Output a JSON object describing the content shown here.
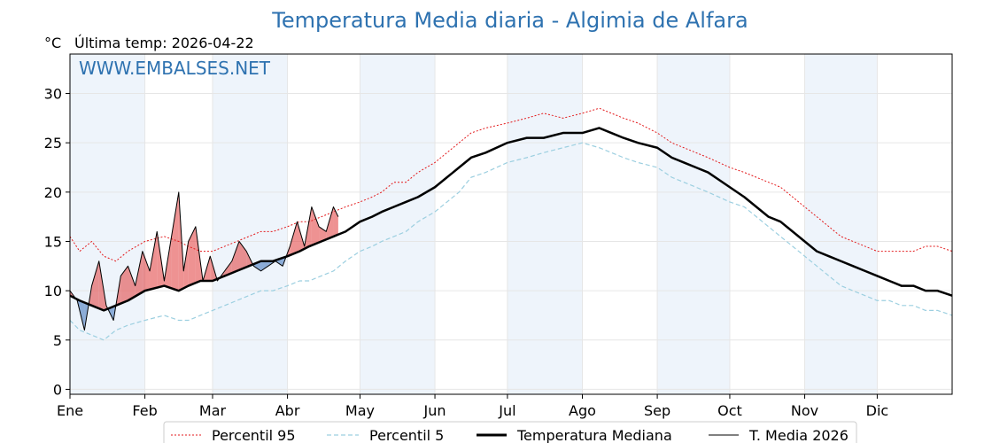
{
  "chart_data": {
    "type": "line",
    "title": "Temperatura Media diaria - Algimia de Alfara",
    "unit_label": "°C",
    "subtitle": "Última temp: 2026-04-22",
    "watermark": "WWW.EMBALSES.NET",
    "ylim": [
      -0.5,
      34
    ],
    "yticks": [
      0,
      5,
      10,
      15,
      20,
      25,
      30
    ],
    "xlim": [
      1,
      366
    ],
    "months": [
      {
        "label": "Ene",
        "day": 1
      },
      {
        "label": "Feb",
        "day": 32
      },
      {
        "label": "Mar",
        "day": 60
      },
      {
        "label": "Abr",
        "day": 91
      },
      {
        "label": "May",
        "day": 121
      },
      {
        "label": "Jun",
        "day": 152
      },
      {
        "label": "Jul",
        "day": 182
      },
      {
        "label": "Ago",
        "day": 213
      },
      {
        "label": "Sep",
        "day": 244
      },
      {
        "label": "Oct",
        "day": 274
      },
      {
        "label": "Nov",
        "day": 305
      },
      {
        "label": "Dic",
        "day": 335
      }
    ],
    "grid": true,
    "legend_position": "bottom",
    "colors": {
      "p95": "#e31a1c",
      "p5": "#9ccfe0",
      "median": "#000000",
      "current": "#000000",
      "above": "#e34a4a",
      "below": "#4a7cc0",
      "band": "#eef4fb"
    },
    "series": [
      {
        "name": "Percentil 95",
        "style": "dotted",
        "x": [
          1,
          5,
          10,
          15,
          20,
          25,
          32,
          40,
          46,
          50,
          55,
          60,
          65,
          70,
          75,
          80,
          85,
          91,
          96,
          100,
          105,
          110,
          115,
          121,
          126,
          130,
          135,
          140,
          145,
          152,
          157,
          162,
          167,
          173,
          182,
          190,
          197,
          205,
          213,
          220,
          225,
          230,
          236,
          244,
          250,
          255,
          260,
          265,
          274,
          280,
          285,
          290,
          295,
          305,
          310,
          315,
          320,
          325,
          330,
          335,
          340,
          345,
          350,
          355,
          360,
          366
        ],
        "y": [
          15.5,
          14,
          15,
          13.5,
          13,
          14,
          15,
          15.5,
          15,
          14.5,
          14,
          14,
          14.5,
          15,
          15.5,
          16,
          16,
          16.5,
          17,
          17,
          17.5,
          18,
          18.5,
          19,
          19.5,
          20,
          21,
          21,
          22,
          23,
          24,
          25,
          26,
          26.5,
          27,
          27.5,
          28,
          27.5,
          28,
          28.5,
          28,
          27.5,
          27,
          26,
          25,
          24.5,
          24,
          23.5,
          22.5,
          22,
          21.5,
          21,
          20.5,
          18.5,
          17.5,
          16.5,
          15.5,
          15,
          14.5,
          14,
          14,
          14,
          14,
          14.5,
          14.5,
          14
        ]
      },
      {
        "name": "Percentil 5",
        "style": "dashed",
        "x": [
          1,
          5,
          10,
          15,
          20,
          25,
          32,
          40,
          46,
          50,
          55,
          60,
          65,
          70,
          75,
          80,
          85,
          91,
          96,
          100,
          105,
          110,
          115,
          121,
          126,
          130,
          135,
          140,
          145,
          152,
          157,
          162,
          167,
          173,
          182,
          190,
          197,
          205,
          213,
          220,
          225,
          230,
          236,
          244,
          250,
          255,
          260,
          265,
          274,
          280,
          285,
          290,
          295,
          305,
          310,
          315,
          320,
          325,
          330,
          335,
          340,
          345,
          350,
          355,
          360,
          366
        ],
        "y": [
          7,
          6,
          5.5,
          5,
          6,
          6.5,
          7,
          7.5,
          7,
          7,
          7.5,
          8,
          8.5,
          9,
          9.5,
          10,
          10,
          10.5,
          11,
          11,
          11.5,
          12,
          13,
          14,
          14.5,
          15,
          15.5,
          16,
          17,
          18,
          19,
          20,
          21.5,
          22,
          23,
          23.5,
          24,
          24.5,
          25,
          24.5,
          24,
          23.5,
          23,
          22.5,
          21.5,
          21,
          20.5,
          20,
          19,
          18.5,
          17.5,
          16.5,
          15.5,
          13.5,
          12.5,
          11.5,
          10.5,
          10,
          9.5,
          9,
          9,
          8.5,
          8.5,
          8,
          8,
          7.5
        ]
      },
      {
        "name": "Temperatura Mediana",
        "style": "solid-thick",
        "x": [
          1,
          5,
          10,
          15,
          20,
          25,
          32,
          40,
          46,
          50,
          55,
          60,
          65,
          70,
          75,
          80,
          85,
          91,
          96,
          100,
          105,
          110,
          115,
          121,
          126,
          130,
          135,
          140,
          145,
          152,
          157,
          162,
          167,
          173,
          182,
          190,
          197,
          205,
          213,
          220,
          225,
          230,
          236,
          244,
          250,
          255,
          260,
          265,
          274,
          280,
          285,
          290,
          295,
          305,
          310,
          315,
          320,
          325,
          330,
          335,
          340,
          345,
          350,
          355,
          360,
          366
        ],
        "y": [
          9.5,
          9,
          8.5,
          8,
          8.5,
          9,
          10,
          10.5,
          10,
          10.5,
          11,
          11,
          11.5,
          12,
          12.5,
          13,
          13,
          13.5,
          14,
          14.5,
          15,
          15.5,
          16,
          17,
          17.5,
          18,
          18.5,
          19,
          19.5,
          20.5,
          21.5,
          22.5,
          23.5,
          24,
          25,
          25.5,
          25.5,
          26,
          26,
          26.5,
          26,
          25.5,
          25,
          24.5,
          23.5,
          23,
          22.5,
          22,
          20.5,
          19.5,
          18.5,
          17.5,
          17,
          15,
          14,
          13.5,
          13,
          12.5,
          12,
          11.5,
          11,
          10.5,
          10.5,
          10,
          10,
          9.5
        ]
      },
      {
        "name": "T. Media 2026",
        "style": "solid-thin",
        "x": [
          1,
          4,
          7,
          10,
          13,
          16,
          19,
          22,
          25,
          28,
          31,
          34,
          37,
          40,
          43,
          46,
          48,
          50,
          53,
          56,
          59,
          62,
          65,
          68,
          71,
          74,
          77,
          80,
          83,
          86,
          89,
          92,
          95,
          98,
          101,
          104,
          107,
          110,
          112
        ],
        "y": [
          10,
          9,
          6,
          10.5,
          13,
          8.5,
          7,
          11.5,
          12.5,
          10.5,
          14,
          12,
          16,
          11,
          15.5,
          20,
          12,
          15,
          16.5,
          11,
          13.5,
          11,
          12,
          13,
          15,
          14,
          12.5,
          12,
          12.5,
          13,
          12.5,
          14.5,
          17,
          14.5,
          18.5,
          16.5,
          16,
          18.5,
          17.5
        ]
      }
    ]
  },
  "legend": {
    "p95": "Percentil 95",
    "p5": "Percentil 5",
    "median": "Temperatura Mediana",
    "current": "T. Media 2026"
  }
}
